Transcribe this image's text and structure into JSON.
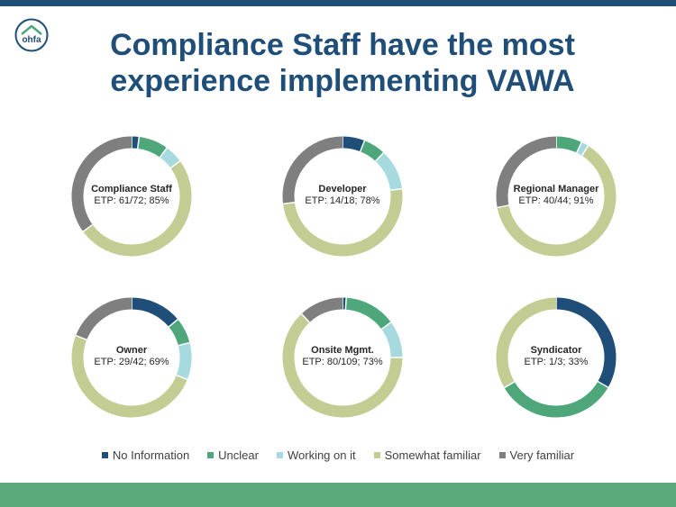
{
  "header": {
    "title": "Compliance Staff have the most experience implementing VAWA",
    "logo_text": "ohfa"
  },
  "colors": {
    "no_information": "#1f4e79",
    "unclear": "#4ea77a",
    "working_on_it": "#a7dade",
    "somewhat_familiar": "#c3cd93",
    "very_familiar": "#7f7f7f"
  },
  "chart_data": {
    "type": "pie",
    "categories": [
      "No Information",
      "Unclear",
      "Working on it",
      "Somewhat familiar",
      "Very familiar"
    ],
    "legend_position": "bottom",
    "charts": [
      {
        "name": "Compliance Staff",
        "subtitle": "ETP: 61/72; 85%",
        "values": [
          2,
          8,
          5,
          50,
          35
        ]
      },
      {
        "name": "Developer",
        "subtitle": "ETP: 14/18; 78%",
        "values": [
          6,
          6,
          11,
          50,
          27
        ]
      },
      {
        "name": "Regional Manager",
        "subtitle": "ETP: 40/44; 91%",
        "values": [
          0,
          7,
          2,
          63,
          28
        ]
      },
      {
        "name": "Owner",
        "subtitle": "ETP: 29/42; 69%",
        "values": [
          14,
          7,
          10,
          50,
          19
        ]
      },
      {
        "name": "Onsite Mgmt.",
        "subtitle": "ETP: 80/109; 73%",
        "values": [
          1,
          14,
          10,
          63,
          12
        ]
      },
      {
        "name": "Syndicator",
        "subtitle": "ETP: 1/3; 33%",
        "values": [
          33.3,
          33.3,
          0,
          33.4,
          0
        ]
      }
    ]
  }
}
